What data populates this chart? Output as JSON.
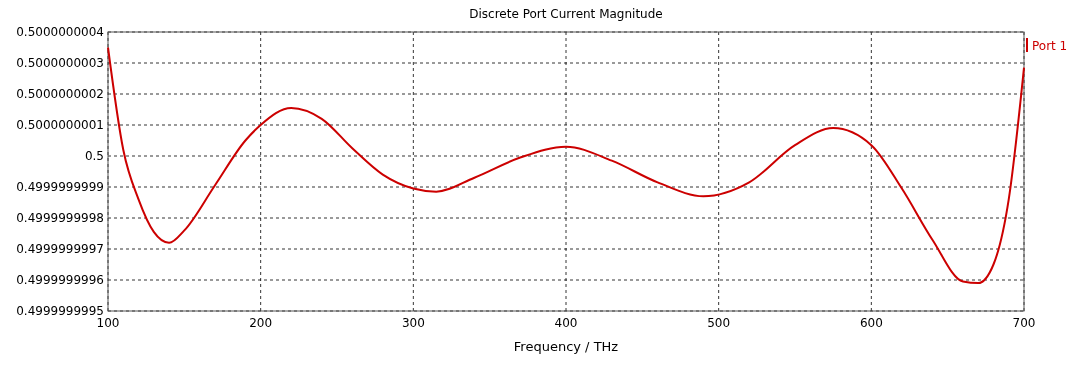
{
  "chart_data": {
    "type": "line",
    "title": "Discrete Port Current Magnitude",
    "xlabel": "Frequency / THz",
    "xlim": [
      100,
      700
    ],
    "xticks": [
      100,
      200,
      300,
      400,
      500,
      600,
      700
    ],
    "ylim": [
      0.4999999995,
      0.5000000004
    ],
    "yticks": [
      0.4999999995,
      0.4999999996,
      0.4999999997,
      0.4999999998,
      0.4999999999,
      0.5,
      0.5000000001,
      0.5000000002,
      0.5000000003,
      0.5000000004
    ],
    "grid": true,
    "legend": "top right",
    "marker": "none",
    "line_style": "solid",
    "series": [
      {
        "name": "Port 1",
        "color": "#cc0000",
        "x": [
          100,
          110,
          120,
          130,
          140,
          150,
          170,
          190,
          200,
          220,
          240,
          260,
          280,
          300,
          315,
          340,
          370,
          400,
          430,
          460,
          490,
          520,
          550,
          575,
          600,
          620,
          640,
          660,
          670,
          680,
          690,
          700
        ],
        "values": [
          0.50000000035,
          0.50000000002,
          0.49999999986,
          0.499999999755,
          0.49999999972,
          0.49999999976,
          0.499999999905,
          0.50000000005,
          0.5000000001,
          0.500000000155,
          0.50000000012,
          0.500000000025,
          0.49999999994,
          0.499999999895,
          0.499999999885,
          0.49999999993,
          0.499999999995,
          0.50000000003,
          0.499999999985,
          0.499999999915,
          0.49999999987,
          0.499999999915,
          0.500000000035,
          0.50000000009,
          0.500000000035,
          0.499999999895,
          0.49999999973,
          0.499999999595,
          0.49999999959,
          0.49999999965,
          0.49999999986,
          0.500000000285
        ]
      }
    ]
  }
}
